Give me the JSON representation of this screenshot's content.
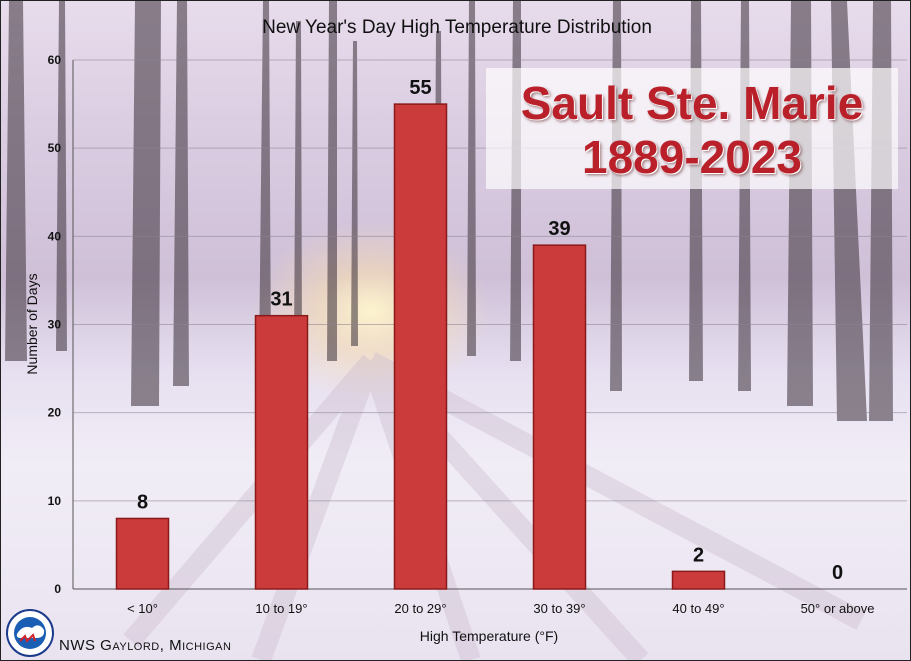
{
  "chart_data": {
    "type": "bar",
    "title": "New Year's Day High Temperature Distribution",
    "categories": [
      "< 10°",
      "10 to 19°",
      "20 to 29°",
      "30 to 39°",
      "40 to 49°",
      "50° or above"
    ],
    "values": [
      8,
      31,
      55,
      39,
      2,
      0
    ],
    "data_labels": [
      "8",
      "31",
      "55",
      "39",
      "2",
      "0"
    ],
    "xlabel": "High Temperature (°F)",
    "ylabel": "Number of Days",
    "ylim": [
      0,
      60
    ],
    "yticks": [
      0,
      10,
      20,
      30,
      40,
      50,
      60
    ],
    "grid": true,
    "bar_color": "#cc3b3b",
    "bar_edge_color": "#8a1a1a"
  },
  "location": {
    "name": "Sault Ste. Marie",
    "years": "1889-2023",
    "color": "#b9202a"
  },
  "footer": {
    "office": "NWS Gaylord, Michigan"
  },
  "logo": {
    "icon": "nws-logo-icon",
    "text": "NATIONAL WEATHER SERVICE"
  }
}
